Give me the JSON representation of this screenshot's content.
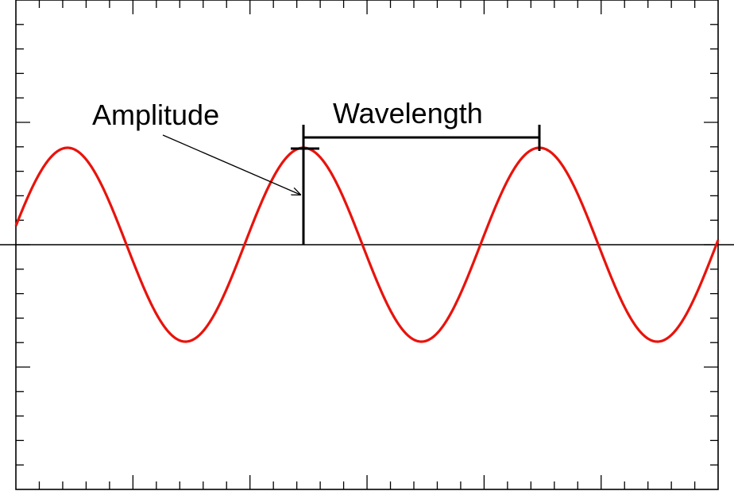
{
  "labels": {
    "amplitude": "Amplitude",
    "wavelength": "Wavelength"
  },
  "colors": {
    "wave": "#e8130c",
    "ink": "#000000",
    "background": "#ffffff"
  },
  "wave": {
    "cycles_shown": 3,
    "amplitude_marker": "peak",
    "wavelength_marker": "peak-to-peak"
  }
}
